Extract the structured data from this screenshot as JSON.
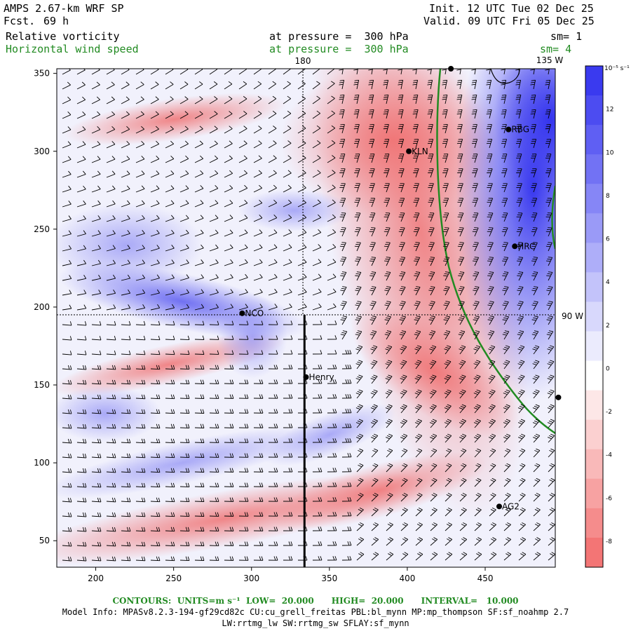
{
  "header": {
    "model": "AMPS 2.67-km WRF SP",
    "fcst_label": "Fcst.",
    "fcst_value": "69 h",
    "init": "Init. 12 UTC Tue 02 Dec 25",
    "valid": "Valid. 09 UTC Fri 05 Dec 25",
    "field1_name": "Relative vorticity",
    "field1_level": "at pressure =  300 hPa",
    "field1_sm": "sm= 1",
    "field2_name": "Horizontal wind speed",
    "field2_level": "at pressure =  300 hPa",
    "field2_sm": "sm= 4"
  },
  "map": {
    "x_ticks": [
      "200",
      "250",
      "300",
      "350",
      "400",
      "450"
    ],
    "x_tick_values": [
      200,
      250,
      300,
      350,
      400,
      450
    ],
    "y_ticks": [
      "50",
      "100",
      "150",
      "200",
      "250",
      "300",
      "350"
    ],
    "y_tick_values": [
      50,
      100,
      150,
      200,
      250,
      300,
      350
    ],
    "x_range": [
      175,
      495
    ],
    "y_range": [
      33,
      353
    ],
    "lon_180_label": "180",
    "lon_135_label": "135 W",
    "lon_90_label": "90 W",
    "stations": [
      {
        "name": "RBG",
        "x": 465,
        "y": 314
      },
      {
        "name": "KLN",
        "x": 401,
        "y": 300
      },
      {
        "name": "HRC",
        "x": 469,
        "y": 239
      },
      {
        "name": "NCO",
        "x": 294,
        "y": 196
      },
      {
        "name": "Henry",
        "x": 335,
        "y": 155
      },
      {
        "name": "AG2",
        "x": 459,
        "y": 72
      },
      {
        "name": "",
        "x": 428,
        "y": 353
      },
      {
        "name": "",
        "x": 497,
        "y": 142
      }
    ],
    "cross_section_x": 334,
    "line_180_x": 333,
    "line_90w_y": 195
  },
  "colorbar": {
    "unit": "10⁻⁵ s⁻¹",
    "labels": [
      "12",
      "10",
      "8",
      "6",
      "4",
      "2",
      "0",
      "-2",
      "-4",
      "-6",
      "-8"
    ],
    "colors": [
      "#3a3aef",
      "#4c4cf1",
      "#5f5ff3",
      "#7272f4",
      "#8686f6",
      "#9a9af7",
      "#aeaef9",
      "#c3c3fa",
      "#d8d8fc",
      "#ebebfd",
      "#ffffff",
      "#fde7e7",
      "#fbd0d0",
      "#f9b9b9",
      "#f7a2a2",
      "#f58c8c",
      "#f37575"
    ]
  },
  "footer": {
    "contours": "CONTOURS:  UNITS=m s⁻¹  LOW=  20.000      HIGH=  20.000      INTERVAL=   10.000",
    "model_info": "Model Info: MPASv8.2.3-194-gf29cd82c CU:cu_grell_freitas PBL:bl_mynn MP:mp_thompson SF:sf_noahmp 2.7",
    "model_info2": "LW:rrtmg_lw SW:rrtmg_sw SFLAY:sf_mynn"
  }
}
